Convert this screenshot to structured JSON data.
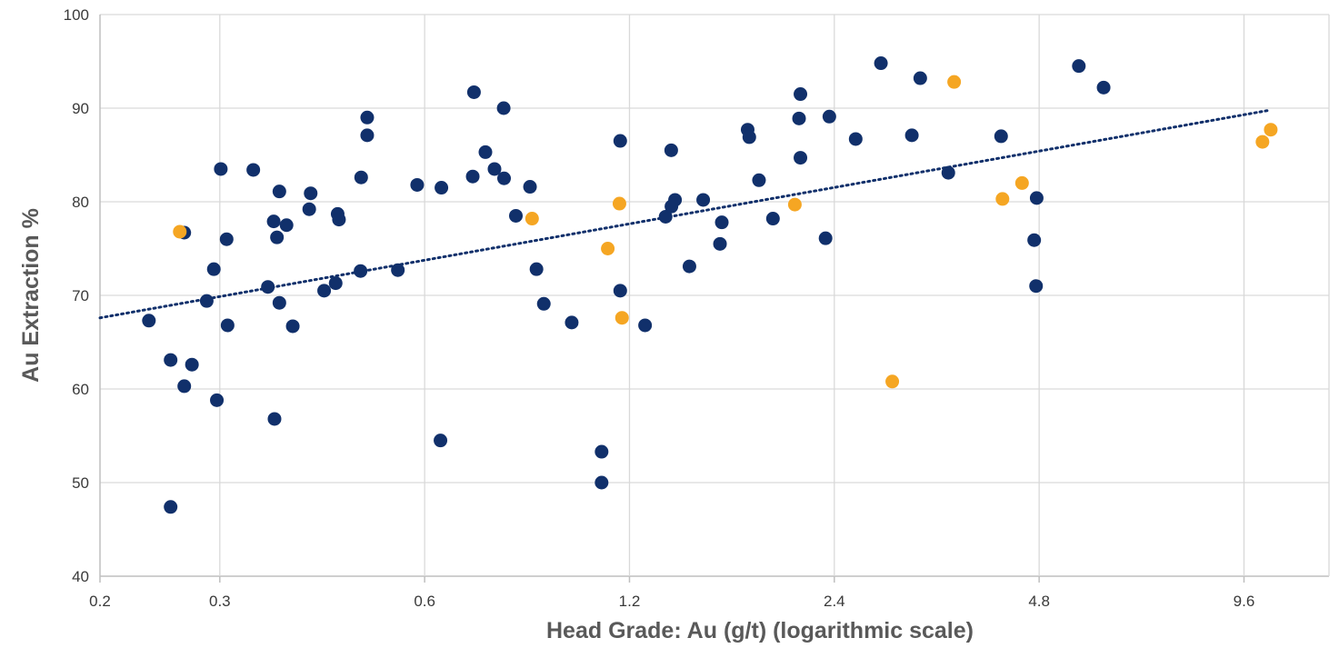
{
  "chart_data": {
    "type": "scatter",
    "title": "",
    "xlabel": "Head Grade: Au (g/t) (logarithmic scale)",
    "ylabel": "Au Extraction %",
    "x_scale": "log2",
    "xlim": [
      0.2,
      12.8
    ],
    "ylim": [
      40,
      100
    ],
    "x_ticks": [
      0.2,
      0.3,
      0.6,
      1.2,
      2.4,
      4.8,
      9.6
    ],
    "x_tick_labels": [
      "0.2",
      "0.3",
      "0.6",
      "1.2",
      "2.4",
      "4.8",
      "9.6"
    ],
    "y_ticks": [
      40,
      50,
      60,
      70,
      80,
      90,
      100
    ],
    "y_tick_labels": [
      "40",
      "50",
      "60",
      "70",
      "80",
      "90",
      "100"
    ],
    "grid": true,
    "legend": "none",
    "colors": {
      "series_1": "#11306b",
      "series_2": "#f5a623",
      "trendline": "#11306b"
    },
    "series": [
      {
        "color": "#11306b",
        "points": [
          [
            0.236,
            67.3
          ],
          [
            0.254,
            63.1
          ],
          [
            0.254,
            47.4
          ],
          [
            0.266,
            76.7
          ],
          [
            0.266,
            60.3
          ],
          [
            0.273,
            62.6
          ],
          [
            0.287,
            69.4
          ],
          [
            0.294,
            72.8
          ],
          [
            0.297,
            58.8
          ],
          [
            0.301,
            83.5
          ],
          [
            0.307,
            76.0
          ],
          [
            0.308,
            66.8
          ],
          [
            0.336,
            83.4
          ],
          [
            0.353,
            70.9
          ],
          [
            0.36,
            77.9
          ],
          [
            0.361,
            56.8
          ],
          [
            0.364,
            76.2
          ],
          [
            0.367,
            81.1
          ],
          [
            0.367,
            69.2
          ],
          [
            0.376,
            77.5
          ],
          [
            0.384,
            66.7
          ],
          [
            0.406,
            79.2
          ],
          [
            0.408,
            80.9
          ],
          [
            0.427,
            70.5
          ],
          [
            0.444,
            71.3
          ],
          [
            0.447,
            78.7
          ],
          [
            0.449,
            78.1
          ],
          [
            0.483,
            72.6
          ],
          [
            0.484,
            82.6
          ],
          [
            0.494,
            89.0
          ],
          [
            0.494,
            87.1
          ],
          [
            0.548,
            72.7
          ],
          [
            0.585,
            81.8
          ],
          [
            0.635,
            81.5
          ],
          [
            0.633,
            54.5
          ],
          [
            0.706,
            82.7
          ],
          [
            0.709,
            91.7
          ],
          [
            0.737,
            85.3
          ],
          [
            0.76,
            83.5
          ],
          [
            0.784,
            90.0
          ],
          [
            0.785,
            82.5
          ],
          [
            0.817,
            78.5
          ],
          [
            0.857,
            81.6
          ],
          [
            0.876,
            72.8
          ],
          [
            0.898,
            69.1
          ],
          [
            0.987,
            67.1
          ],
          [
            1.092,
            53.3
          ],
          [
            1.092,
            50.0
          ],
          [
            1.163,
            86.5
          ],
          [
            1.163,
            70.5
          ],
          [
            1.265,
            66.8
          ],
          [
            1.356,
            78.4
          ],
          [
            1.383,
            79.5
          ],
          [
            1.382,
            85.5
          ],
          [
            1.4,
            80.2
          ],
          [
            1.47,
            73.1
          ],
          [
            1.54,
            80.2
          ],
          [
            1.63,
            75.5
          ],
          [
            1.64,
            77.8
          ],
          [
            1.79,
            87.7
          ],
          [
            1.8,
            86.9
          ],
          [
            1.86,
            82.3
          ],
          [
            1.95,
            78.2
          ],
          [
            2.13,
            88.9
          ],
          [
            2.14,
            84.7
          ],
          [
            2.14,
            91.5
          ],
          [
            2.33,
            76.1
          ],
          [
            2.36,
            89.1
          ],
          [
            2.58,
            86.7
          ],
          [
            2.81,
            94.8
          ],
          [
            3.12,
            87.1
          ],
          [
            3.21,
            93.2
          ],
          [
            3.53,
            83.1
          ],
          [
            4.22,
            87.0
          ],
          [
            4.72,
            75.9
          ],
          [
            4.76,
            80.4
          ],
          [
            4.75,
            71.0
          ],
          [
            5.49,
            94.5
          ],
          [
            5.97,
            92.2
          ]
        ]
      },
      {
        "color": "#f5a623",
        "points": [
          [
            0.262,
            76.8
          ],
          [
            0.863,
            78.2
          ],
          [
            1.115,
            75.0
          ],
          [
            1.16,
            79.8
          ],
          [
            1.17,
            67.6
          ],
          [
            2.1,
            79.7
          ],
          [
            2.92,
            60.8
          ],
          [
            3.6,
            92.8
          ],
          [
            4.24,
            80.3
          ],
          [
            4.53,
            82.0
          ],
          [
            10.22,
            86.4
          ],
          [
            10.51,
            87.7
          ]
        ]
      }
    ],
    "trendline": {
      "type": "logarithmic",
      "style": "dotted",
      "color": "#11306b",
      "from": [
        0.2,
        67.6
      ],
      "to": [
        10.5,
        89.8
      ]
    }
  }
}
